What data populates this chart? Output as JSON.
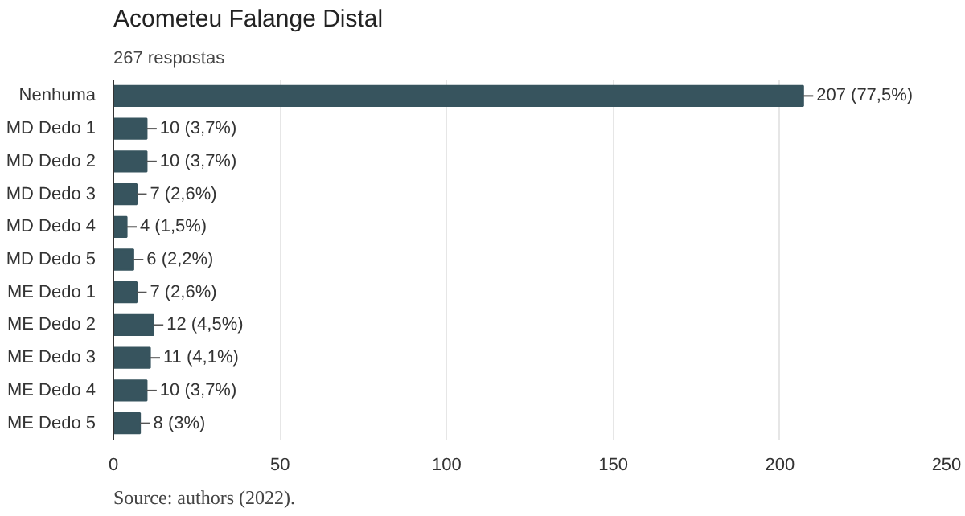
{
  "chart_data": {
    "type": "bar",
    "orientation": "horizontal",
    "title": "Acometeu Falange Distal",
    "subtitle": "267 respostas",
    "categories": [
      "Nenhuma",
      "MD Dedo 1",
      "MD Dedo 2",
      "MD Dedo 3",
      "MD Dedo 4",
      "MD Dedo 5",
      "ME Dedo 1",
      "ME Dedo 2",
      "ME Dedo 3",
      "ME Dedo 4",
      "ME Dedo 5"
    ],
    "values": [
      207,
      10,
      10,
      7,
      4,
      6,
      7,
      12,
      11,
      10,
      8
    ],
    "value_labels": [
      "207 (77,5%)",
      "10 (3,7%)",
      "10 (3,7%)",
      "7 (2,6%)",
      "4 (1,5%)",
      "6 (2,2%)",
      "7 (2,6%)",
      "12 (4,5%)",
      "11 (4,1%)",
      "10 (3,7%)",
      "8 (3%)"
    ],
    "color": "#37545e",
    "xlim": [
      0,
      250
    ],
    "xticks": [
      0,
      50,
      100,
      150,
      200,
      250
    ],
    "grid": "x",
    "annotations": [
      "Source: authors (2022)."
    ]
  }
}
